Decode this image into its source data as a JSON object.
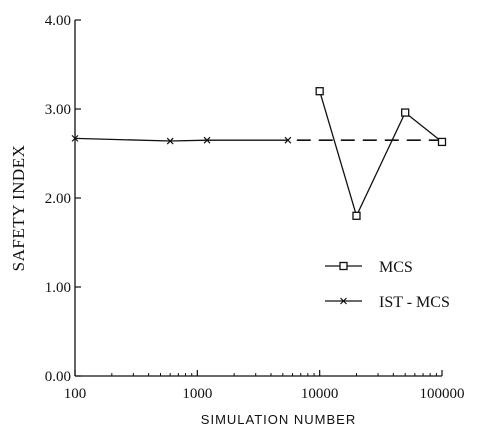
{
  "chart_data": {
    "type": "line",
    "xscale": "log",
    "xlim": [
      100,
      100000
    ],
    "ylim": [
      0,
      4
    ],
    "xlabel": "SIMULATION NUMBER",
    "ylabel": "SAFETY INDEX",
    "xticks": [
      {
        "value": 100,
        "label": "100"
      },
      {
        "value": 1000,
        "label": "1000"
      },
      {
        "value": 10000,
        "label": "10000"
      },
      {
        "value": 100000,
        "label": "100000"
      }
    ],
    "yticks": [
      {
        "value": 0,
        "label": "0.00"
      },
      {
        "value": 1,
        "label": "1.00"
      },
      {
        "value": 2,
        "label": "2.00"
      },
      {
        "value": 3,
        "label": "3.00"
      },
      {
        "value": 4,
        "label": "4.00"
      }
    ],
    "series": [
      {
        "name": "MCS",
        "marker": "square",
        "line": "solid",
        "points": [
          {
            "x": 10000,
            "y": 3.2
          },
          {
            "x": 20000,
            "y": 1.8
          },
          {
            "x": 50000,
            "y": 2.96
          },
          {
            "x": 100000,
            "y": 2.63
          }
        ]
      },
      {
        "name": "IST - MCS",
        "marker": "x",
        "line": "solid",
        "points": [
          {
            "x": 100,
            "y": 2.67
          },
          {
            "x": 600,
            "y": 2.64
          },
          {
            "x": 1200,
            "y": 2.65
          },
          {
            "x": 5500,
            "y": 2.65
          }
        ]
      }
    ],
    "reference_line": {
      "y": 2.65,
      "x_from": 6500,
      "x_to": 100000,
      "style": "dashed"
    },
    "legend": {
      "placement": "right",
      "entries": [
        "MCS",
        "IST - MCS"
      ]
    },
    "grid": false
  }
}
